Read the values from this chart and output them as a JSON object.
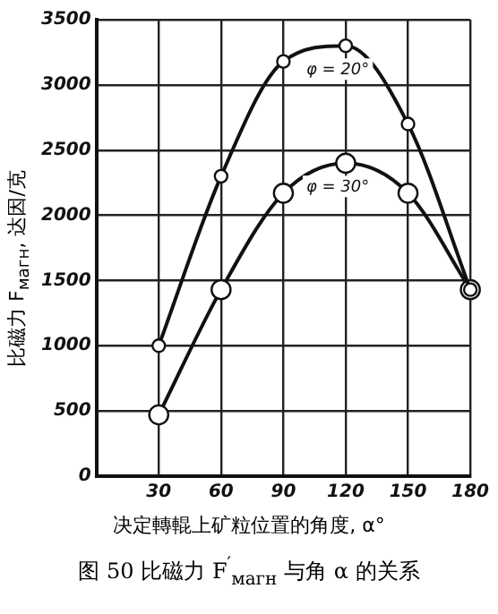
{
  "chart_data": {
    "type": "line",
    "title": "图 50  比磁力 F$^{′}$$_{магн}$ 与角 α 的关系",
    "xlabel": "决定轉輥上矿粒位置的角度, α°",
    "ylabel": "比磁力 F$_{магн}$, 达因/克",
    "x": [
      30,
      60,
      90,
      120,
      150,
      180
    ],
    "series": [
      {
        "name": "φ = 20°",
        "color": "#111111",
        "values": [
          1000,
          2300,
          3180,
          3300,
          2700,
          1430
        ]
      },
      {
        "name": "φ = 30°",
        "color": "#111111",
        "values": [
          470,
          1430,
          2170,
          2400,
          2170,
          1430
        ]
      }
    ],
    "xlim": [
      0,
      180
    ],
    "xticks": [
      {
        "value": 0,
        "label": null
      },
      30,
      60,
      90,
      120,
      150,
      180
    ],
    "ylim": [
      0,
      3500
    ],
    "yticks": [
      0,
      500,
      1000,
      1500,
      2000,
      2500,
      3000,
      3500
    ],
    "grid": true,
    "legend": false,
    "marker": "circle",
    "line_style": "solid"
  }
}
